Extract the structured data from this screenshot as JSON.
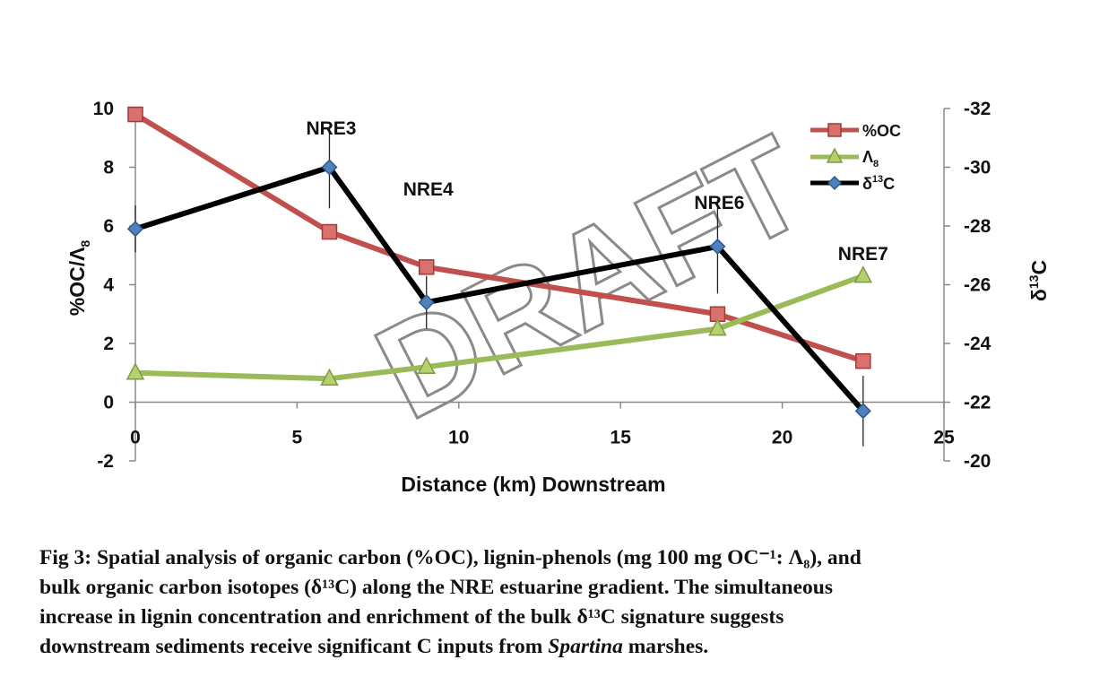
{
  "chart_data": {
    "type": "line",
    "xlabel": "Distance (km) Downstream",
    "ylabel_left": "%OC/Λ8",
    "ylabel_right": "δ13C",
    "xlim": [
      0,
      25
    ],
    "ylim_left": [
      -2,
      10
    ],
    "ylim_right": [
      -20,
      -32
    ],
    "x_ticks": [
      "0",
      "5",
      "10",
      "15",
      "20",
      "25"
    ],
    "y_ticks_left": [
      "-2",
      "0",
      "2",
      "4",
      "6",
      "8",
      "10"
    ],
    "y_ticks_right": [
      "-20",
      "-22",
      "-24",
      "-26",
      "-28",
      "-30",
      "-32"
    ],
    "stations": [
      {
        "label": "NRE3",
        "x": 6
      },
      {
        "label": "NRE4",
        "x": 9
      },
      {
        "label": "NRE6",
        "x": 18
      },
      {
        "label": "NRE7",
        "x": 22.5
      }
    ],
    "series": [
      {
        "name": "%OC",
        "axis": "left",
        "color": "#c0504d",
        "marker": "square",
        "x": [
          0,
          6,
          9,
          18,
          22.5
        ],
        "values": [
          9.8,
          5.8,
          4.6,
          3.0,
          1.4
        ]
      },
      {
        "name": "Λ8",
        "axis": "left",
        "color": "#9bbb59",
        "marker": "triangle",
        "x": [
          0,
          6,
          9,
          18,
          22.5
        ],
        "values": [
          1.0,
          0.8,
          1.2,
          2.5,
          4.3
        ]
      },
      {
        "name": "δ13C",
        "axis": "right",
        "color": "#000000",
        "marker": "diamond",
        "x": [
          0,
          6,
          9,
          18,
          22.5
        ],
        "values": [
          -27.9,
          -30.0,
          -25.4,
          -27.3,
          -21.7
        ],
        "error": [
          0.8,
          1.4,
          0.9,
          1.6,
          1.2
        ]
      }
    ],
    "legend": [
      {
        "text": "%OC"
      },
      {
        "text": "Λ8"
      },
      {
        "text": "δ13C"
      }
    ],
    "legend_position": "top-right",
    "watermark": "DRAFT"
  },
  "caption": {
    "fig_label": "Fig 3:",
    "line1": "Spatial analysis of organic carbon (%OC), lignin-phenols (mg 100 mg OC⁻¹: Λ₈), and",
    "line2": "bulk organic carbon isotopes (δ¹³C) along the NRE estuarine gradient.  The simultaneous",
    "line3": "increase in lignin concentration and enrichment of the bulk δ¹³C signature suggests",
    "line4_a": "downstream sediments receive significant C inputs from ",
    "line4_em": "Spartina",
    "line4_b": " marshes."
  }
}
